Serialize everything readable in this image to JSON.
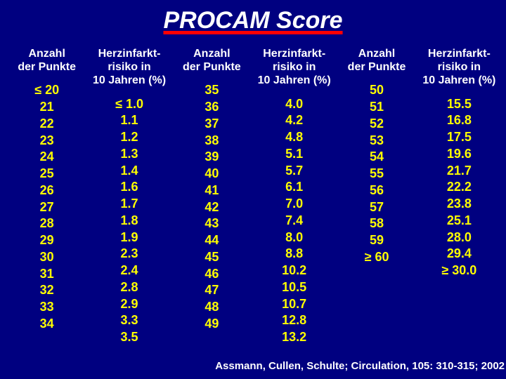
{
  "title": "PROCAM Score",
  "headers": {
    "points": "Anzahl\nder Punkte",
    "risk": "Herzinfarkt-\nrisiko in\n10 Jahren (%)"
  },
  "columns": [
    {
      "points": [
        "≤ 20",
        "21",
        "22",
        "23",
        "24",
        "25",
        "26",
        "27",
        "28",
        "29",
        "30",
        "31",
        "32",
        "33",
        "34"
      ],
      "risk": [
        "≤ 1.0",
        "1.1",
        "1.2",
        "1.3",
        "1.4",
        "1.6",
        "1.7",
        "1.8",
        "1.9",
        "2.3",
        "2.4",
        "2.8",
        "2.9",
        "3.3",
        "3.5"
      ]
    },
    {
      "points": [
        "35",
        "36",
        "37",
        "38",
        "39",
        "40",
        "41",
        "42",
        "43",
        "44",
        "45",
        "46",
        "47",
        "48",
        "49"
      ],
      "risk": [
        "4.0",
        "4.2",
        "4.8",
        "5.1",
        "5.7",
        "6.1",
        "7.0",
        "7.4",
        "8.0",
        "8.8",
        "10.2",
        "10.5",
        "10.7",
        "12.8",
        "13.2"
      ]
    },
    {
      "points": [
        "50",
        "51",
        "52",
        "53",
        "54",
        "55",
        "56",
        "57",
        "58",
        "59",
        "≥ 60"
      ],
      "risk": [
        "15.5",
        "16.8",
        "17.5",
        "19.6",
        "21.7",
        "22.2",
        "23.8",
        "25.1",
        "28.0",
        "29.4",
        "≥ 30.0"
      ]
    }
  ],
  "citation": "Assmann, Cullen, Schulte;\nCirculation, 105: 310-315; 2002"
}
